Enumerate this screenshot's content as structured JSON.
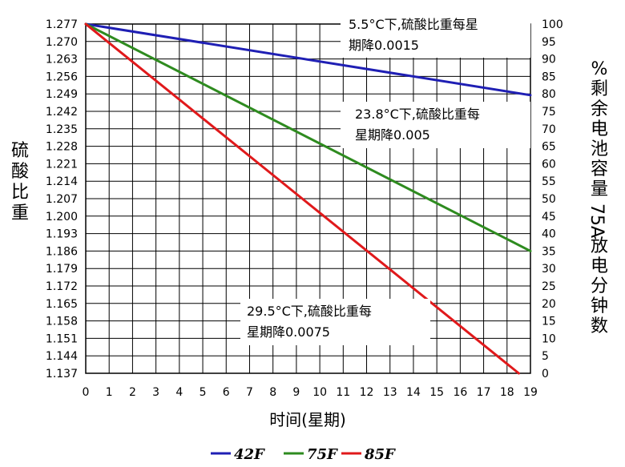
{
  "chart_data": {
    "type": "line",
    "xlabel": "时间(星期)",
    "ylabel_left": "硫酸比重",
    "ylabel_right": "%剩余电池容量 75A放电分钟数",
    "x_ticks": [
      "0",
      "1",
      "2",
      "3",
      "4",
      "5",
      "6",
      "7",
      "8",
      "9",
      "10",
      "11",
      "12",
      "13",
      "14",
      "15",
      "16",
      "17",
      "18",
      "19"
    ],
    "y_left_ticks": [
      "1.277",
      "1.270",
      "1.263",
      "1.256",
      "1.249",
      "1.242",
      "1.235",
      "1.228",
      "1.221",
      "1.214",
      "1.207",
      "1.200",
      "1.193",
      "1.186",
      "1.179",
      "1.172",
      "1.165",
      "1.158",
      "1.151",
      "1.144",
      "1.137"
    ],
    "y_right_ticks": [
      "100",
      "95",
      "90",
      "85",
      "80",
      "75",
      "70",
      "65",
      "60",
      "55",
      "50",
      "45",
      "40",
      "35",
      "30",
      "25",
      "20",
      "15",
      "10",
      "5",
      "0"
    ],
    "xlim": [
      0,
      19
    ],
    "ylim_left": [
      1.137,
      1.277
    ],
    "ylim_right": [
      0,
      100
    ],
    "grid": true,
    "legend_position": "bottom",
    "series": [
      {
        "name": "42F",
        "color": "#1f1fb4",
        "x": [
          0,
          19
        ],
        "y": [
          1.277,
          1.2485
        ]
      },
      {
        "name": "75F",
        "color": "#2e8b1f",
        "x": [
          0,
          19
        ],
        "y": [
          1.277,
          1.186
        ]
      },
      {
        "name": "85F",
        "color": "#e0191b",
        "x": [
          0,
          18.5
        ],
        "y": [
          1.277,
          1.137
        ]
      }
    ],
    "annotations": [
      {
        "lines": [
          "5.5°C下,硫酸比重每星",
          "期降0.0015"
        ]
      },
      {
        "lines": [
          "23.8°C下,硫酸比重每",
          "星期降0.005"
        ]
      },
      {
        "lines": [
          "29.5°C下,硫酸比重每",
          "星期降0.0075"
        ]
      }
    ]
  }
}
